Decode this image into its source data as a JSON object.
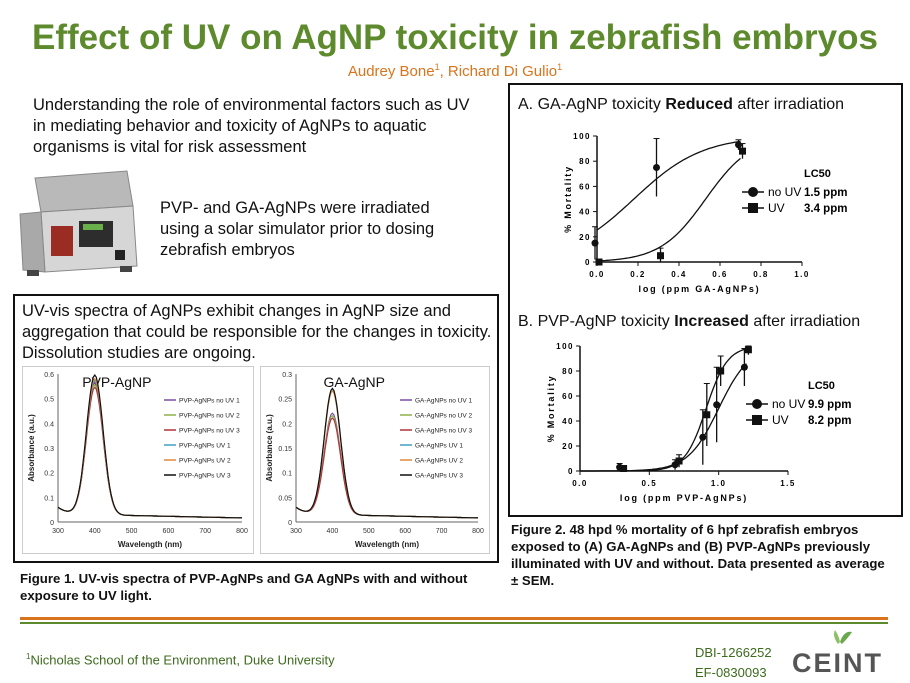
{
  "title": "Effect of UV on AgNP toxicity in zebrafish embryos",
  "authors": {
    "a1": "Audrey Bone",
    "s1": "1",
    "sep": ", Richard Di Gulio",
    "s2": "1"
  },
  "intro": "Understanding the role of environmental factors such as UV in mediating behavior and toxicity of AgNPs to aquatic organisms is vital for risk assessment",
  "irradiation": "PVP- and GA-AgNPs were irradiated using a solar simulator prior to dosing zebrafish embryos",
  "uvvis_text": "UV-vis spectra of AgNPs exhibit changes in AgNP size and aggregation that could be responsible for the changes in toxicity. Dissolution studies are ongoing.",
  "fig1_caption": "Figure 1. UV-vis spectra of PVP-AgNPs and GA AgNPs with and without exposure to UV light.",
  "fig2_caption": "Figure 2. 48 hpd % mortality of 6 hpf zebrafish embryos exposed to (A) GA-AgNPs and (B) PVP-AgNPs previously illuminated with UV and without. Data presented as average ± SEM.",
  "footer": {
    "sup": "1",
    "text": "Nicholas School of the Environment, Duke University"
  },
  "grants": [
    "DBI-1266252",
    "EF-0830093"
  ],
  "logo": "CEINT",
  "chart_data": [
    {
      "type": "line",
      "title": "PVP-AgNP",
      "xlabel": "Wavelength (nm)",
      "ylabel": "Absorbance (a.u.)",
      "xlim": [
        300,
        800
      ],
      "ylim": [
        0,
        0.6
      ],
      "xticks": [
        "300",
        "400",
        "500",
        "600",
        "700",
        "800"
      ],
      "yticks": [
        "0",
        "0.1",
        "0.2",
        "0.3",
        "0.4",
        "0.5",
        "0.6"
      ],
      "series": [
        {
          "name": "PVP-AgNPs no UV 1",
          "color": "#7b4fa3",
          "peak": 0.545
        },
        {
          "name": "PVP-AgNPs no UV 2",
          "color": "#8db04a",
          "peak": 0.535
        },
        {
          "name": "PVP-AgNPs no UV 3",
          "color": "#b0343a",
          "peak": 0.525
        },
        {
          "name": "PVP-AgNPs UV 1",
          "color": "#3fa0c0",
          "peak": 0.555
        },
        {
          "name": "PVP-AgNPs UV 2",
          "color": "#e08a3c",
          "peak": 0.56
        },
        {
          "name": "PVP-AgNPs UV 3",
          "color": "#111111",
          "peak": 0.575
        }
      ]
    },
    {
      "type": "line",
      "title": "GA-AgNP",
      "xlabel": "Wavelength (nm)",
      "ylabel": "Absorbance (a.u.)",
      "xlim": [
        300,
        800
      ],
      "ylim": [
        0,
        0.3
      ],
      "xticks": [
        "300",
        "400",
        "500",
        "600",
        "700",
        "800"
      ],
      "yticks": [
        "0",
        "0.05",
        "0.1",
        "0.15",
        "0.2",
        "0.25",
        "0.3"
      ],
      "series": [
        {
          "name": "GA-AgNPs no UV 1",
          "color": "#7b4fa3",
          "peak": 0.21
        },
        {
          "name": "GA-AgNPs no UV 2",
          "color": "#8db04a",
          "peak": 0.205
        },
        {
          "name": "GA-AgNPs no UV 3",
          "color": "#b0343a",
          "peak": 0.2
        },
        {
          "name": "GA-AgNPs UV 1",
          "color": "#3fa0c0",
          "peak": 0.26
        },
        {
          "name": "GA-AgNPs UV 2",
          "color": "#e08a3c",
          "peak": 0.255
        },
        {
          "name": "GA-AgNPs UV 3",
          "color": "#111111",
          "peak": 0.26
        }
      ]
    },
    {
      "type": "scatter",
      "panel": "A",
      "title_prefix": "A.  GA-AgNP toxicity ",
      "title_bold": "Reduced",
      "title_suffix": " after irradiation",
      "xlabel": "log (ppm GA-AgNPs)",
      "ylabel": "% Mortality",
      "xlim": [
        0,
        1.0
      ],
      "ylim": [
        0,
        100
      ],
      "xticks": [
        "0.0",
        "0.2",
        "0.4",
        "0.6",
        "0.8",
        "1.0"
      ],
      "yticks": [
        "0",
        "20",
        "40",
        "60",
        "80",
        "100"
      ],
      "legend_title": "LC50",
      "series": [
        {
          "name": "no UV",
          "marker": "circle",
          "lc50": "1.5 ppm",
          "log_lc50": 0.18,
          "slope": 6,
          "x": [
            0.0,
            0.3,
            0.7
          ],
          "y": [
            15,
            75,
            93
          ],
          "err": [
            13,
            23,
            4
          ]
        },
        {
          "name": "UV",
          "marker": "square",
          "lc50": "3.4 ppm",
          "log_lc50": 0.53,
          "slope": 9,
          "x": [
            0.0,
            0.3,
            0.7
          ],
          "y": [
            0,
            5,
            88
          ],
          "err": [
            2,
            6,
            6
          ]
        }
      ]
    },
    {
      "type": "scatter",
      "panel": "B",
      "title_prefix": "B. PVP-AgNP toxicity ",
      "title_bold": "Increased",
      "title_suffix": " after irradiation",
      "xlabel": "log (ppm PVP-AgNPs)",
      "ylabel": "% Mortality",
      "xlim": [
        0,
        1.5
      ],
      "ylim": [
        0,
        100
      ],
      "xticks": [
        "0.0",
        "0.5",
        "1.0",
        "1.5"
      ],
      "yticks": [
        "0",
        "20",
        "40",
        "60",
        "80",
        "100"
      ],
      "legend_title": "LC50",
      "series": [
        {
          "name": "no UV",
          "marker": "circle",
          "lc50": "9.9 ppm",
          "log_lc50": 1.0,
          "slope": 9,
          "x": [
            0.3,
            0.7,
            0.9,
            1.0,
            1.2
          ],
          "y": [
            3,
            5,
            27,
            53,
            83
          ],
          "err": [
            3,
            4,
            22,
            30,
            15
          ]
        },
        {
          "name": "UV",
          "marker": "square",
          "lc50": "8.2 ppm",
          "log_lc50": 0.91,
          "slope": 13,
          "x": [
            0.3,
            0.7,
            0.9,
            1.0,
            1.2
          ],
          "y": [
            2,
            8,
            45,
            80,
            97
          ],
          "err": [
            2,
            5,
            25,
            12,
            4
          ]
        }
      ]
    }
  ]
}
